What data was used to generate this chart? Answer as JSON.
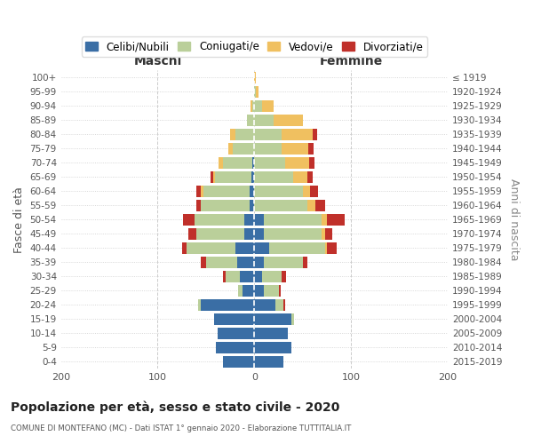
{
  "age_groups": [
    "0-4",
    "5-9",
    "10-14",
    "15-19",
    "20-24",
    "25-29",
    "30-34",
    "35-39",
    "40-44",
    "45-49",
    "50-54",
    "55-59",
    "60-64",
    "65-69",
    "70-74",
    "75-79",
    "80-84",
    "85-89",
    "90-94",
    "95-99",
    "100+"
  ],
  "birth_years": [
    "2015-2019",
    "2010-2014",
    "2005-2009",
    "2000-2004",
    "1995-1999",
    "1990-1994",
    "1985-1989",
    "1980-1984",
    "1975-1979",
    "1970-1974",
    "1965-1969",
    "1960-1964",
    "1955-1959",
    "1950-1954",
    "1945-1949",
    "1940-1944",
    "1935-1939",
    "1930-1934",
    "1925-1929",
    "1920-1924",
    "≤ 1919"
  ],
  "colors": {
    "celibi": "#3A6EA5",
    "coniugati": "#BACF9A",
    "vedovi": "#F0C060",
    "divorziati": "#C0302A"
  },
  "males": {
    "celibi": [
      32,
      40,
      38,
      42,
      55,
      12,
      15,
      18,
      20,
      10,
      10,
      5,
      5,
      3,
      2,
      0,
      0,
      0,
      0,
      0,
      0
    ],
    "coniugati": [
      0,
      0,
      0,
      0,
      3,
      5,
      15,
      32,
      50,
      50,
      52,
      50,
      48,
      38,
      30,
      22,
      20,
      8,
      2,
      0,
      0
    ],
    "vedovi": [
      0,
      0,
      0,
      0,
      0,
      0,
      0,
      0,
      0,
      0,
      0,
      0,
      2,
      2,
      5,
      5,
      5,
      0,
      2,
      0,
      0
    ],
    "divorziati": [
      0,
      0,
      0,
      0,
      0,
      0,
      2,
      5,
      5,
      8,
      12,
      5,
      5,
      2,
      0,
      0,
      0,
      0,
      0,
      0,
      0
    ]
  },
  "females": {
    "celibi": [
      30,
      38,
      35,
      38,
      22,
      10,
      8,
      10,
      15,
      10,
      10,
      0,
      0,
      0,
      0,
      0,
      0,
      0,
      0,
      0,
      0
    ],
    "coniugati": [
      0,
      0,
      0,
      3,
      8,
      15,
      20,
      40,
      58,
      60,
      60,
      55,
      50,
      40,
      32,
      28,
      28,
      20,
      8,
      2,
      0
    ],
    "vedovi": [
      0,
      0,
      0,
      0,
      0,
      0,
      0,
      0,
      2,
      3,
      5,
      8,
      8,
      15,
      25,
      28,
      32,
      30,
      12,
      2,
      2
    ],
    "divorziati": [
      0,
      0,
      0,
      0,
      2,
      2,
      5,
      5,
      10,
      8,
      18,
      10,
      8,
      5,
      5,
      5,
      5,
      0,
      0,
      0,
      0
    ]
  },
  "title": "Popolazione per età, sesso e stato civile - 2020",
  "subtitle": "COMUNE DI MONTEFANO (MC) - Dati ISTAT 1° gennaio 2020 - Elaborazione TUTTITALIA.IT",
  "xlim": 200,
  "xlabel_left": "Maschi",
  "xlabel_right": "Femmine",
  "ylabel_left": "Fasce di età",
  "ylabel_right": "Anni di nascita",
  "legend_labels": [
    "Celibi/Nubili",
    "Coniugati/e",
    "Vedovi/e",
    "Divorziati/e"
  ]
}
